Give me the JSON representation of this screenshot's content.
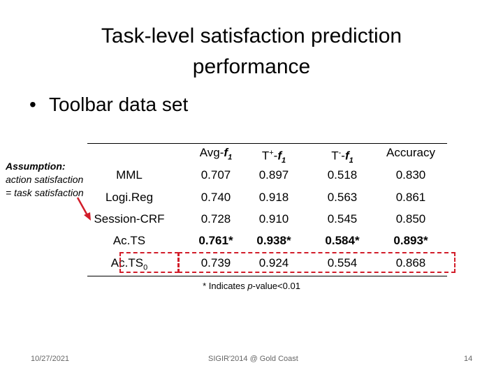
{
  "slide": {
    "title_line1": "Task-level satisfaction prediction",
    "title_line2": "performance",
    "bullet": "Toolbar data set",
    "note": {
      "label": "Assumption:",
      "text": "action satisfaction = task satisfaction"
    },
    "table": {
      "headers": [
        "Avg-f",
        "T+-f",
        "T--f",
        "Accuracy"
      ],
      "header_parts": [
        {
          "main": "Avg-",
          "sup": "",
          "f": "f",
          "sub": "1"
        },
        {
          "main": "T",
          "sup": "+",
          "f": "-f",
          "sub": "1"
        },
        {
          "main": "T",
          "sup": "-",
          "f": "-f",
          "sub": "1"
        },
        {
          "main": "Accuracy",
          "sup": "",
          "f": "",
          "sub": ""
        }
      ],
      "rows": [
        {
          "name": "MML",
          "name_sub": "",
          "values": [
            "0.707",
            "0.897",
            "0.518",
            "0.830"
          ],
          "bold": false
        },
        {
          "name": "Logi.Reg",
          "name_sub": "",
          "values": [
            "0.740",
            "0.918",
            "0.563",
            "0.861"
          ],
          "bold": false
        },
        {
          "name": "Session-CRF",
          "name_sub": "",
          "values": [
            "0.728",
            "0.910",
            "0.545",
            "0.850"
          ],
          "bold": false
        },
        {
          "name": "Ac.TS",
          "name_sub": "",
          "values": [
            "0.761*",
            "0.938*",
            "0.584*",
            "0.893*"
          ],
          "bold": true
        },
        {
          "name": "Ac.TS",
          "name_sub": "0",
          "values": [
            "0.739",
            "0.924",
            "0.554",
            "0.868"
          ],
          "bold": false
        }
      ]
    },
    "footnote": "* Indicates p-value<0.01",
    "footnote_parts": {
      "pre": "* Indicates ",
      "ital": "p",
      "post": "-value<0.01"
    },
    "footer": {
      "date": "10/27/2021",
      "venue": "SIGIR'2014 @ Gold Coast",
      "page": "14"
    },
    "colors": {
      "highlight": "#d21d2a"
    }
  }
}
